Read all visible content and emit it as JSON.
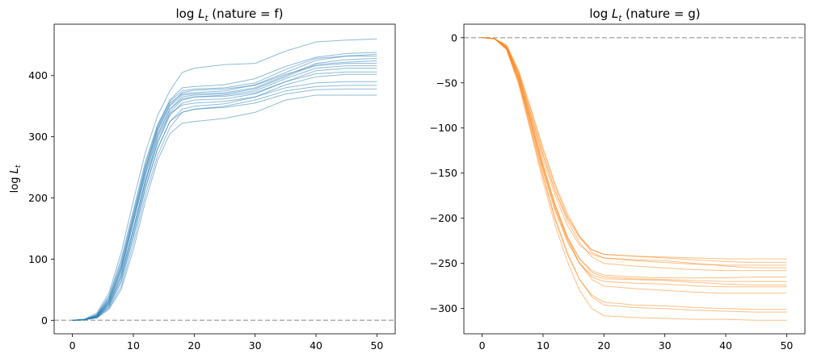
{
  "chart_data": [
    {
      "type": "line",
      "title_prefix": "log",
      "title_var": "L",
      "title_sub": "t",
      "title_suffix": " (nature = f)",
      "ylabel_prefix": "log",
      "ylabel_var": "L",
      "ylabel_sub": "t",
      "xlim": [
        -3,
        53
      ],
      "ylim": [
        -22,
        484
      ],
      "xticks": [
        0,
        10,
        20,
        30,
        40,
        50
      ],
      "yticks": [
        0,
        100,
        200,
        300,
        400
      ],
      "color": "#1f77b4",
      "reference_line": 0,
      "x": [
        0,
        2,
        4,
        6,
        8,
        10,
        12,
        14,
        16,
        18,
        20,
        25,
        30,
        35,
        40,
        45,
        50
      ],
      "series": [
        {
          "values": [
            0,
            2,
            12,
            45,
            110,
            195,
            275,
            335,
            375,
            405,
            412,
            418,
            420,
            440,
            455,
            458,
            460
          ]
        },
        {
          "values": [
            0,
            1,
            10,
            40,
            100,
            180,
            260,
            320,
            360,
            380,
            382,
            385,
            395,
            415,
            430,
            436,
            438
          ]
        },
        {
          "values": [
            0,
            1,
            8,
            35,
            90,
            170,
            250,
            315,
            355,
            370,
            372,
            375,
            385,
            405,
            425,
            432,
            435
          ]
        },
        {
          "values": [
            0,
            1,
            9,
            38,
            95,
            175,
            255,
            318,
            358,
            375,
            378,
            380,
            388,
            410,
            428,
            432,
            432
          ]
        },
        {
          "values": [
            0,
            1,
            7,
            32,
            85,
            165,
            245,
            310,
            350,
            368,
            370,
            372,
            380,
            400,
            420,
            426,
            428
          ]
        },
        {
          "values": [
            0,
            1,
            6,
            30,
            80,
            160,
            240,
            305,
            345,
            365,
            368,
            370,
            378,
            398,
            418,
            422,
            424
          ]
        },
        {
          "values": [
            0,
            1,
            8,
            34,
            88,
            168,
            248,
            312,
            352,
            372,
            376,
            378,
            384,
            402,
            416,
            420,
            420
          ]
        },
        {
          "values": [
            0,
            1,
            6,
            28,
            75,
            150,
            230,
            298,
            340,
            360,
            365,
            368,
            375,
            395,
            412,
            416,
            416
          ]
        },
        {
          "values": [
            0,
            1,
            5,
            25,
            70,
            145,
            225,
            290,
            335,
            355,
            360,
            362,
            370,
            390,
            408,
            412,
            412
          ]
        },
        {
          "values": [
            0,
            1,
            7,
            30,
            82,
            160,
            238,
            302,
            345,
            362,
            365,
            366,
            372,
            390,
            403,
            406,
            406
          ]
        },
        {
          "values": [
            0,
            1,
            6,
            27,
            72,
            148,
            228,
            292,
            338,
            352,
            355,
            358,
            365,
            385,
            398,
            402,
            402
          ]
        },
        {
          "values": [
            0,
            1,
            5,
            22,
            62,
            135,
            215,
            280,
            325,
            345,
            350,
            354,
            365,
            380,
            388,
            390,
            390
          ]
        },
        {
          "values": [
            0,
            1,
            4,
            20,
            55,
            125,
            205,
            270,
            315,
            340,
            345,
            350,
            360,
            375,
            382,
            384,
            384
          ]
        },
        {
          "values": [
            0,
            1,
            5,
            24,
            65,
            138,
            218,
            282,
            325,
            340,
            345,
            348,
            355,
            370,
            377,
            378,
            378
          ]
        },
        {
          "values": [
            0,
            1,
            4,
            18,
            50,
            115,
            195,
            262,
            305,
            322,
            325,
            330,
            340,
            360,
            368,
            368,
            368
          ]
        }
      ]
    },
    {
      "type": "line",
      "title_prefix": "log",
      "title_var": "L",
      "title_sub": "t",
      "title_suffix": " (nature = g)",
      "xlim": [
        -3,
        53
      ],
      "ylim": [
        -328,
        15
      ],
      "xticks": [
        0,
        10,
        20,
        30,
        40,
        50
      ],
      "yticks": [
        0,
        -50,
        -100,
        -150,
        -200,
        -250,
        -300
      ],
      "color": "#ff7f0e",
      "reference_line": 0,
      "x": [
        0,
        2,
        4,
        6,
        8,
        10,
        12,
        14,
        16,
        18,
        20,
        25,
        30,
        35,
        40,
        45,
        50
      ],
      "series": [
        {
          "values": [
            0,
            -1,
            -10,
            -40,
            -85,
            -130,
            -170,
            -200,
            -222,
            -235,
            -240,
            -242,
            -243,
            -244,
            -245,
            -245,
            -245
          ]
        },
        {
          "values": [
            0,
            -1,
            -9,
            -38,
            -80,
            -125,
            -165,
            -198,
            -220,
            -235,
            -240,
            -242,
            -244,
            -246,
            -248,
            -249,
            -249
          ]
        },
        {
          "values": [
            0,
            -1,
            -8,
            -36,
            -78,
            -122,
            -162,
            -195,
            -220,
            -238,
            -244,
            -247,
            -249,
            -251,
            -252,
            -252,
            -252
          ]
        },
        {
          "values": [
            0,
            -1,
            -10,
            -42,
            -88,
            -135,
            -175,
            -208,
            -230,
            -240,
            -244,
            -246,
            -247,
            -250,
            -253,
            -255,
            -255
          ]
        },
        {
          "values": [
            0,
            -1,
            -9,
            -40,
            -84,
            -130,
            -170,
            -203,
            -227,
            -243,
            -250,
            -253,
            -255,
            -257,
            -258,
            -258,
            -258
          ]
        },
        {
          "values": [
            0,
            -1,
            -12,
            -46,
            -95,
            -145,
            -188,
            -222,
            -245,
            -258,
            -263,
            -265,
            -266,
            -266,
            -266,
            -265,
            -265
          ]
        },
        {
          "values": [
            0,
            -1,
            -11,
            -44,
            -92,
            -142,
            -185,
            -220,
            -245,
            -260,
            -265,
            -267,
            -268,
            -269,
            -270,
            -270,
            -270
          ]
        },
        {
          "values": [
            0,
            -1,
            -12,
            -47,
            -97,
            -148,
            -192,
            -226,
            -250,
            -263,
            -267,
            -268,
            -269,
            -271,
            -273,
            -274,
            -274
          ]
        },
        {
          "values": [
            0,
            -1,
            -11,
            -45,
            -94,
            -145,
            -190,
            -225,
            -250,
            -265,
            -270,
            -272,
            -273,
            -275,
            -276,
            -276,
            -276
          ]
        },
        {
          "values": [
            0,
            -1,
            -10,
            -42,
            -90,
            -140,
            -185,
            -222,
            -250,
            -268,
            -275,
            -278,
            -280,
            -282,
            -283,
            -283,
            -283
          ]
        },
        {
          "values": [
            0,
            -1,
            -13,
            -50,
            -102,
            -155,
            -202,
            -240,
            -268,
            -285,
            -293,
            -296,
            -297,
            -299,
            -300,
            -301,
            -301
          ]
        },
        {
          "values": [
            0,
            -1,
            -12,
            -48,
            -100,
            -152,
            -200,
            -238,
            -268,
            -287,
            -296,
            -299,
            -300,
            -302,
            -303,
            -304,
            -304
          ]
        },
        {
          "values": [
            0,
            -1,
            -13,
            -52,
            -105,
            -160,
            -208,
            -248,
            -280,
            -300,
            -308,
            -310,
            -311,
            -312,
            -312,
            -313,
            -313
          ]
        }
      ]
    }
  ]
}
